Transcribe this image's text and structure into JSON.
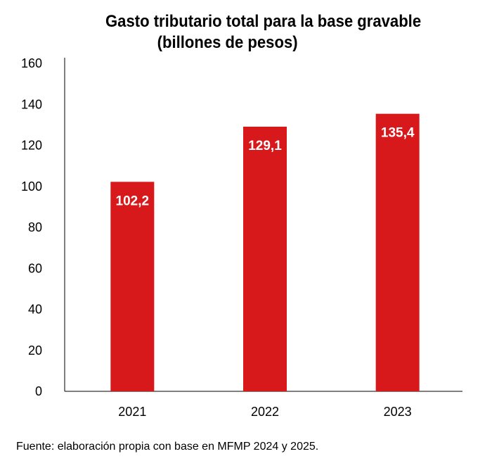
{
  "chart_data": {
    "type": "bar",
    "title_line1": "Gasto tributario total para la base gravable",
    "title_line2": "(billones de pesos)",
    "xlabel": "",
    "ylabel": "",
    "categories": [
      "2021",
      "2022",
      "2023"
    ],
    "values": [
      102.2,
      129.1,
      135.4
    ],
    "data_labels": [
      "102,2",
      "129,1",
      "135,4"
    ],
    "ylim": [
      0,
      160
    ],
    "yticks": [
      "0",
      "20",
      "40",
      "60",
      "80",
      "100",
      "120",
      "140",
      "160"
    ],
    "ytick_values": [
      0,
      20,
      40,
      60,
      80,
      100,
      120,
      140,
      160
    ],
    "grid": false,
    "bar_color": "#d7191c",
    "data_label_color": "#ffffff"
  },
  "source_note": "Fuente: elaboración propia con base en MFMP 2024 y 2025."
}
